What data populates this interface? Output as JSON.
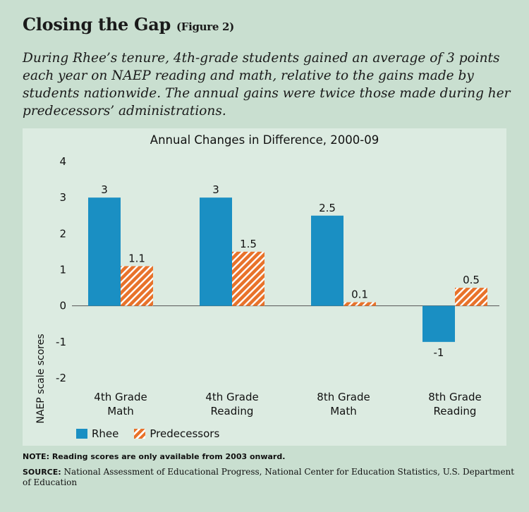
{
  "header": {
    "title": "Closing the Gap",
    "figure_label": "(Figure 2)",
    "subtitle": "During Rhee’s tenure, 4th-grade students gained an average of 3 points each year on NAEP reading and math, relative to the gains made by students nationwide. The annual gains were twice those made during her predecessors’ administrations."
  },
  "chart_data": {
    "type": "bar",
    "title": "Annual Changes in Difference, 2000-09",
    "ylabel": "NAEP scale scores",
    "xlabel": "",
    "ylim": [
      -2,
      4
    ],
    "yticks": [
      "4",
      "3",
      "2",
      "1",
      "0",
      "-1",
      "-2"
    ],
    "categories": [
      [
        "4th Grade",
        "Math"
      ],
      [
        "4th Grade",
        "Reading"
      ],
      [
        "8th Grade",
        "Math"
      ],
      [
        "8th Grade",
        "Reading"
      ]
    ],
    "series": [
      {
        "name": "Rhee",
        "values": [
          3,
          3,
          2.5,
          -1
        ],
        "labels": [
          "3",
          "3",
          "2.5",
          "-1"
        ],
        "color": "#1a8fc3"
      },
      {
        "name": "Predecessors",
        "values": [
          1.1,
          1.5,
          0.1,
          0.5
        ],
        "labels": [
          "1.1",
          "1.5",
          "0.1",
          "0.5"
        ],
        "color": "#e8722a"
      }
    ],
    "legend": "bottom-left",
    "grid": false
  },
  "footer": {
    "note_label": "NOTE:",
    "note_text": "Reading scores are only available from 2003 onward.",
    "source_label": "SOURCE:",
    "source_text": "National Assessment of Educational Progress, National Center for Education Statistics, U.S. Department of Education"
  },
  "colors": {
    "background": "#c9dfd0",
    "panel": "#dcebe1",
    "rhee": "#1a8fc3",
    "predecessors": "#e8722a"
  }
}
